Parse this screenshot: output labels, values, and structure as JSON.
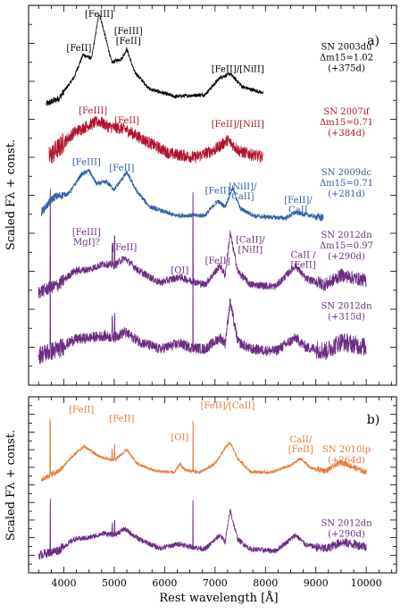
{
  "chart_data": {
    "type": "line",
    "xlabel": "Rest wavelength [Å]",
    "xlim": [
      3300,
      10600
    ],
    "x_ticks": [
      4000,
      5000,
      6000,
      7000,
      8000,
      9000,
      10000
    ],
    "x_tick_labels": [
      "4000",
      "5000",
      "6000",
      "7000",
      "8000",
      "9000",
      "10000"
    ],
    "panels": [
      {
        "id": "a",
        "panel_label": "a)",
        "ylabel": "Scaled Fλ + const.",
        "ylim": [
          0,
          10
        ],
        "series": [
          {
            "name_lines": [
              "SN 2003du",
              "Δm15=1.02",
              "(+375d)"
            ],
            "color": "#000000",
            "x_range": [
              3650,
              7950
            ],
            "offset": 7.4,
            "profile": [
              [
                3650,
                0.0
              ],
              [
                3900,
                0.15
              ],
              [
                4200,
                0.7
              ],
              [
                4380,
                1.3
              ],
              [
                4550,
                1.2
              ],
              [
                4700,
                2.4
              ],
              [
                4800,
                1.9
              ],
              [
                4950,
                1.1
              ],
              [
                5150,
                1.2
              ],
              [
                5250,
                1.45
              ],
              [
                5400,
                0.85
              ],
              [
                5700,
                0.4
              ],
              [
                6200,
                0.2
              ],
              [
                6800,
                0.25
              ],
              [
                7100,
                0.7
              ],
              [
                7300,
                0.8
              ],
              [
                7550,
                0.45
              ],
              [
                7950,
                0.3
              ]
            ],
            "noise": 0.05
          },
          {
            "name_lines": [
              "SN 2007if",
              "Δm15=0.71",
              "(+384d)"
            ],
            "color": "#b0132e",
            "x_range": [
              3700,
              7950
            ],
            "offset": 5.7,
            "profile": [
              [
                3700,
                0.3
              ],
              [
                3900,
                0.55
              ],
              [
                4200,
                0.95
              ],
              [
                4500,
                1.15
              ],
              [
                4700,
                1.25
              ],
              [
                4900,
                1.1
              ],
              [
                5200,
                1.05
              ],
              [
                5600,
                0.75
              ],
              [
                6100,
                0.4
              ],
              [
                6600,
                0.3
              ],
              [
                7000,
                0.5
              ],
              [
                7250,
                0.75
              ],
              [
                7500,
                0.45
              ],
              [
                7950,
                0.3
              ]
            ],
            "noise": 0.16
          },
          {
            "name_lines": [
              "SN 2009dc",
              "Δm15=0.71",
              "(+281d)"
            ],
            "color": "#2f5ea8",
            "x_range": [
              3550,
              9150
            ],
            "offset": 4.35,
            "profile": [
              [
                3550,
                0.2
              ],
              [
                3800,
                0.6
              ],
              [
                4100,
                0.7
              ],
              [
                4350,
                1.2
              ],
              [
                4500,
                1.3
              ],
              [
                4650,
                0.95
              ],
              [
                4850,
                1.0
              ],
              [
                5000,
                0.8
              ],
              [
                5250,
                1.25
              ],
              [
                5450,
                0.75
              ],
              [
                5700,
                0.35
              ],
              [
                6200,
                0.12
              ],
              [
                6800,
                0.12
              ],
              [
                7050,
                0.5
              ],
              [
                7200,
                0.35
              ],
              [
                7350,
                0.85
              ],
              [
                7500,
                0.3
              ],
              [
                7800,
                0.1
              ],
              [
                8400,
                0.05
              ],
              [
                8600,
                0.2
              ],
              [
                8750,
                0.15
              ],
              [
                9150,
                0.05
              ]
            ],
            "noise": 0.06
          },
          {
            "name_lines": [
              "SN 2012dn",
              "Δm15=0.97",
              "(+290d)"
            ],
            "color": "#6b2c82",
            "x_range": [
              3500,
              10000
            ],
            "offset": 2.45,
            "profile": [
              [
                3500,
                0.0
              ],
              [
                3900,
                0.2
              ],
              [
                4200,
                0.55
              ],
              [
                4500,
                0.6
              ],
              [
                4800,
                0.75
              ],
              [
                5000,
                0.7
              ],
              [
                5200,
                0.9
              ],
              [
                5500,
                0.55
              ],
              [
                5900,
                0.25
              ],
              [
                6300,
                0.4
              ],
              [
                6500,
                0.3
              ],
              [
                6800,
                0.2
              ],
              [
                7100,
                0.7
              ],
              [
                7200,
                0.45
              ],
              [
                7300,
                1.55
              ],
              [
                7450,
                0.55
              ],
              [
                7700,
                0.2
              ],
              [
                8200,
                0.15
              ],
              [
                8600,
                0.7
              ],
              [
                8800,
                0.35
              ],
              [
                9200,
                0.2
              ],
              [
                9500,
                0.45
              ],
              [
                10000,
                0.3
              ]
            ],
            "noise": 0.1
          },
          {
            "name_lines": [
              "SN 2012dn",
              "(+315d)"
            ],
            "color": "#6b2c82",
            "x_range": [
              3500,
              10000
            ],
            "offset": 0.8,
            "profile": [
              [
                3500,
                0.0
              ],
              [
                3900,
                0.15
              ],
              [
                4200,
                0.4
              ],
              [
                4500,
                0.45
              ],
              [
                4800,
                0.5
              ],
              [
                5000,
                0.45
              ],
              [
                5200,
                0.6
              ],
              [
                5500,
                0.35
              ],
              [
                5900,
                0.15
              ],
              [
                6300,
                0.3
              ],
              [
                6500,
                0.2
              ],
              [
                6800,
                0.15
              ],
              [
                7100,
                0.45
              ],
              [
                7200,
                0.3
              ],
              [
                7300,
                1.4
              ],
              [
                7450,
                0.35
              ],
              [
                7700,
                0.15
              ],
              [
                8200,
                0.1
              ],
              [
                8600,
                0.45
              ],
              [
                8800,
                0.2
              ],
              [
                9200,
                0.1
              ],
              [
                9500,
                0.35
              ],
              [
                10000,
                0.2
              ]
            ],
            "noise": 0.14
          }
        ],
        "annotations": [
          {
            "lines": [
              "[FeIII]"
            ],
            "x": 4700,
            "y": 9.7,
            "color": "#000000"
          },
          {
            "lines": [
              "[FeII]"
            ],
            "x": 4300,
            "y": 8.8,
            "color": "#000000"
          },
          {
            "lines": [
              "[FeIII]",
              "[FeII]"
            ],
            "x": 5280,
            "y": 9.25,
            "color": "#000000"
          },
          {
            "lines": [
              "[FeII]/[NiII]"
            ],
            "x": 7450,
            "y": 8.25,
            "color": "#000000"
          },
          {
            "lines": [
              "[FeIII]"
            ],
            "x": 4580,
            "y": 7.15,
            "color": "#b0132e"
          },
          {
            "lines": [
              "[FeII]"
            ],
            "x": 5250,
            "y": 6.9,
            "color": "#b0132e"
          },
          {
            "lines": [
              "[FeII]/[NiII]"
            ],
            "x": 7450,
            "y": 6.8,
            "color": "#b0132e"
          },
          {
            "lines": [
              "[FeIII]"
            ],
            "x": 4450,
            "y": 5.8,
            "color": "#2f5ea8"
          },
          {
            "lines": [
              "[FeII]"
            ],
            "x": 5150,
            "y": 5.65,
            "color": "#2f5ea8"
          },
          {
            "lines": [
              "[FeII]"
            ],
            "x": 7050,
            "y": 5.05,
            "color": "#2f5ea8"
          },
          {
            "lines": [
              "[NiII]/",
              "CaII]"
            ],
            "x": 7550,
            "y": 5.15,
            "color": "#2f5ea8"
          },
          {
            "lines": [
              "[FeII]/",
              "CaII"
            ],
            "x": 8650,
            "y": 4.8,
            "color": "#2f5ea8"
          },
          {
            "lines": [
              "[FeIII]",
              "MgI]?"
            ],
            "x": 4450,
            "y": 3.95,
            "color": "#6b2c82"
          },
          {
            "lines": [
              "[FeII]"
            ],
            "x": 5200,
            "y": 3.55,
            "color": "#6b2c82"
          },
          {
            "lines": [
              "[OI]"
            ],
            "x": 6300,
            "y": 2.95,
            "color": "#6b2c82"
          },
          {
            "lines": [
              "[FeII]"
            ],
            "x": 7050,
            "y": 3.2,
            "color": "#6b2c82"
          },
          {
            "lines": [
              "[CaII]/",
              "[NiII]"
            ],
            "x": 7700,
            "y": 3.75,
            "color": "#6b2c82"
          },
          {
            "lines": [
              "CaII /",
              "[FeII]"
            ],
            "x": 8750,
            "y": 3.35,
            "color": "#6b2c82"
          }
        ]
      },
      {
        "id": "b",
        "panel_label": "b)",
        "ylabel": "Scaled Fλ + const.",
        "ylim": [
          0,
          10
        ],
        "series": [
          {
            "name_lines": [
              "SN 2010lp",
              "(+264d)"
            ],
            "color": "#e87a3a",
            "x_range": [
              3550,
              10000
            ],
            "offset": 5.3,
            "profile": [
              [
                3550,
                0.0
              ],
              [
                3900,
                0.5
              ],
              [
                4200,
                1.4
              ],
              [
                4400,
                1.9
              ],
              [
                4700,
                1.3
              ],
              [
                5000,
                1.1
              ],
              [
                5250,
                1.7
              ],
              [
                5450,
                0.9
              ],
              [
                5800,
                0.5
              ],
              [
                6200,
                0.4
              ],
              [
                6300,
                0.9
              ],
              [
                6400,
                0.55
              ],
              [
                6700,
                0.4
              ],
              [
                7000,
                0.9
              ],
              [
                7200,
                1.8
              ],
              [
                7300,
                2.1
              ],
              [
                7450,
                1.2
              ],
              [
                7700,
                0.45
              ],
              [
                8100,
                0.4
              ],
              [
                8500,
                0.8
              ],
              [
                8700,
                1.2
              ],
              [
                8900,
                0.65
              ],
              [
                9200,
                0.5
              ],
              [
                9500,
                1.0
              ],
              [
                10000,
                0.4
              ]
            ],
            "noise": 0.09
          },
          {
            "name_lines": [
              "SN 2012dn",
              "(+290d)"
            ],
            "color": "#6b2c82",
            "x_range": [
              3500,
              10000
            ],
            "offset": 1.0,
            "profile": [
              [
                3500,
                0.0
              ],
              [
                3900,
                0.3
              ],
              [
                4200,
                0.9
              ],
              [
                4500,
                1.0
              ],
              [
                4800,
                1.25
              ],
              [
                5000,
                1.15
              ],
              [
                5200,
                1.5
              ],
              [
                5500,
                0.9
              ],
              [
                5900,
                0.4
              ],
              [
                6300,
                0.65
              ],
              [
                6500,
                0.5
              ],
              [
                6800,
                0.35
              ],
              [
                7100,
                1.15
              ],
              [
                7200,
                0.75
              ],
              [
                7300,
                2.55
              ],
              [
                7450,
                0.9
              ],
              [
                7700,
                0.35
              ],
              [
                8200,
                0.25
              ],
              [
                8600,
                1.15
              ],
              [
                8800,
                0.6
              ],
              [
                9200,
                0.35
              ],
              [
                9500,
                0.75
              ],
              [
                10000,
                0.5
              ]
            ],
            "noise": 0.15
          }
        ],
        "annotations": [
          {
            "lines": [
              "[FeII]"
            ],
            "x": 4350,
            "y": 9.1,
            "color": "#e87a3a"
          },
          {
            "lines": [
              "[FeII]"
            ],
            "x": 5150,
            "y": 8.6,
            "color": "#e87a3a"
          },
          {
            "lines": [
              "[OI]"
            ],
            "x": 6300,
            "y": 7.55,
            "color": "#e87a3a"
          },
          {
            "lines": [
              "[FeII]/[CaII]"
            ],
            "x": 7250,
            "y": 9.35,
            "color": "#e87a3a"
          },
          {
            "lines": [
              "CaII/",
              "[FeII]"
            ],
            "x": 8700,
            "y": 7.4,
            "color": "#e87a3a"
          }
        ]
      }
    ]
  }
}
